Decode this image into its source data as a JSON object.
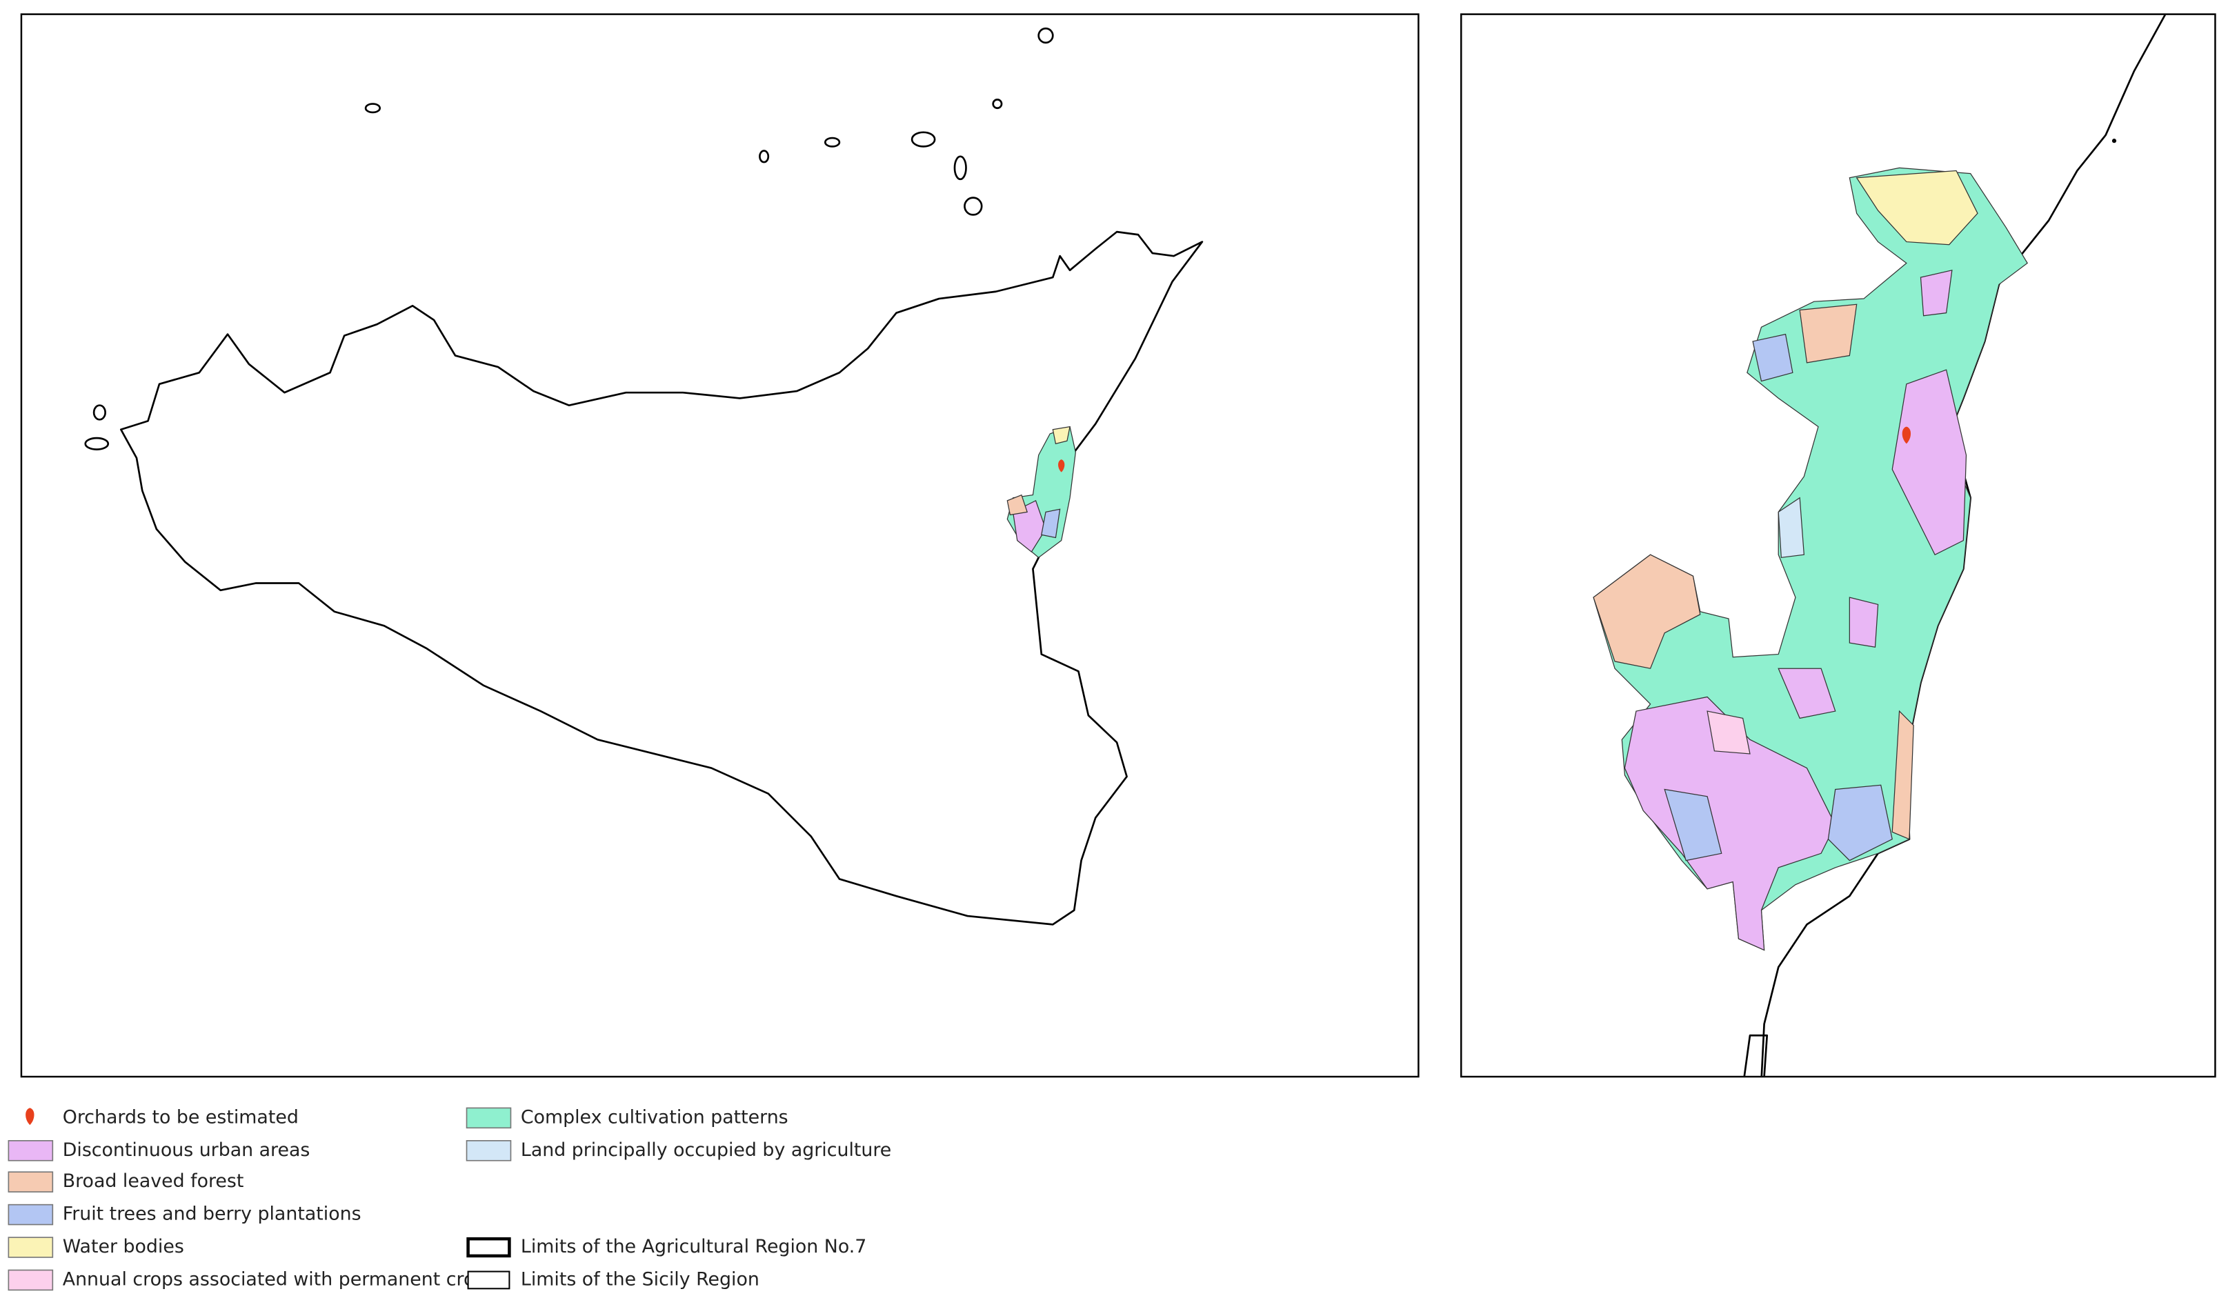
{
  "legend": {
    "items": [
      {
        "label": "Orchards to be estimated",
        "symbol": "marker",
        "color": "#e8401c"
      },
      {
        "label": "Discontinuous urban areas",
        "symbol": "fill",
        "color": "#e9b7f5"
      },
      {
        "label": "Broad leaved forest",
        "symbol": "fill",
        "color": "#f6cbb2"
      },
      {
        "label": "Fruit trees and berry plantations",
        "symbol": "fill",
        "color": "#b3c6f3"
      },
      {
        "label": "Water bodies",
        "symbol": "fill",
        "color": "#fbf3b6"
      },
      {
        "label": "Annual crops associated with permanent crops",
        "symbol": "fill",
        "color": "#fcd0ec"
      },
      {
        "label": "Complex cultivation patterns",
        "symbol": "fill",
        "color": "#8ff0cf"
      },
      {
        "label": "Land principally occupied by agriculture",
        "symbol": "fill",
        "color": "#d3e7f7"
      },
      {
        "label": "Limits of the Agricultural Region No.7",
        "symbol": "thick-outline",
        "color": "#000000"
      },
      {
        "label": "Limits of the Sicily Region",
        "symbol": "thin-outline",
        "color": "#000000"
      }
    ]
  }
}
